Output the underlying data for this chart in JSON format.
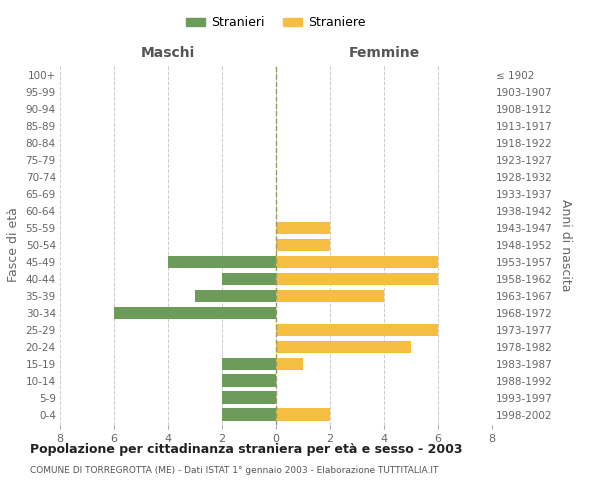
{
  "age_groups": [
    "0-4",
    "5-9",
    "10-14",
    "15-19",
    "20-24",
    "25-29",
    "30-34",
    "35-39",
    "40-44",
    "45-49",
    "50-54",
    "55-59",
    "60-64",
    "65-69",
    "70-74",
    "75-79",
    "80-84",
    "85-89",
    "90-94",
    "95-99",
    "100+"
  ],
  "birth_years": [
    "1998-2002",
    "1993-1997",
    "1988-1992",
    "1983-1987",
    "1978-1982",
    "1973-1977",
    "1968-1972",
    "1963-1967",
    "1958-1962",
    "1953-1957",
    "1948-1952",
    "1943-1947",
    "1938-1942",
    "1933-1937",
    "1928-1932",
    "1923-1927",
    "1918-1922",
    "1913-1917",
    "1908-1912",
    "1903-1907",
    "≤ 1902"
  ],
  "maschi": [
    2,
    2,
    2,
    2,
    0,
    0,
    6,
    3,
    2,
    4,
    0,
    0,
    0,
    0,
    0,
    0,
    0,
    0,
    0,
    0,
    0
  ],
  "femmine": [
    2,
    0,
    0,
    1,
    5,
    6,
    0,
    4,
    6,
    6,
    2,
    2,
    0,
    0,
    0,
    0,
    0,
    0,
    0,
    0,
    0
  ],
  "male_color": "#6d9b5a",
  "female_color": "#f5be41",
  "background_color": "#ffffff",
  "grid_color": "#cccccc",
  "title": "Popolazione per cittadinanza straniera per età e sesso - 2003",
  "subtitle": "COMUNE DI TORREGROTTA (ME) - Dati ISTAT 1° gennaio 2003 - Elaborazione TUTTITALIA.IT",
  "xlabel_left": "Maschi",
  "xlabel_right": "Femmine",
  "ylabel_left": "Fasce di età",
  "ylabel_right": "Anni di nascita",
  "legend_male": "Stranieri",
  "legend_female": "Straniere",
  "xlim": 8,
  "bar_height": 0.75
}
